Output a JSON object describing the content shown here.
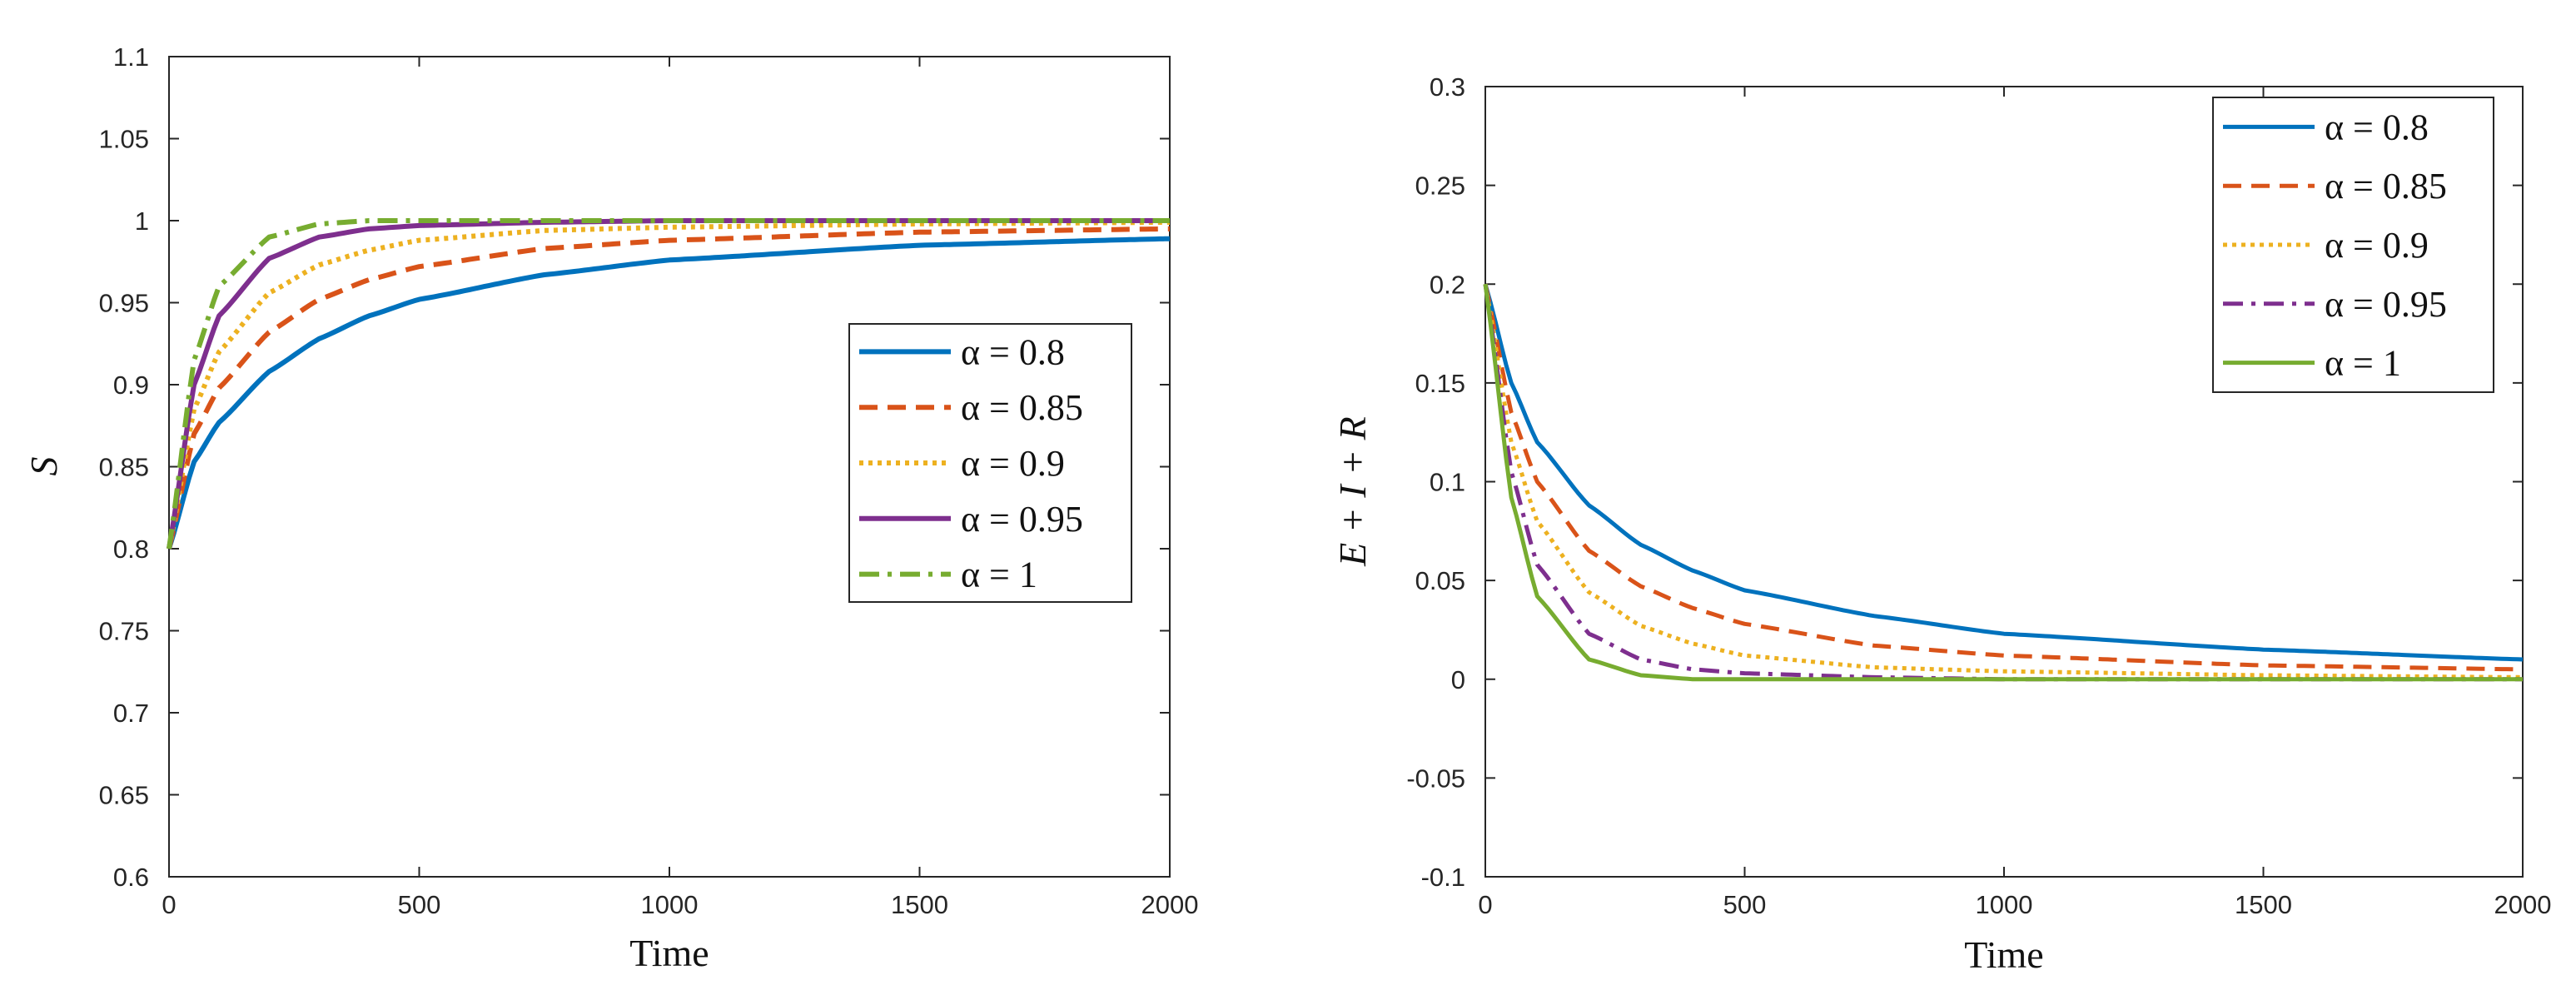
{
  "chart_data": [
    {
      "type": "line",
      "title": "",
      "xlabel": "Time",
      "ylabel": "S",
      "xlim": [
        0,
        2000
      ],
      "ylim": [
        0.6,
        1.1
      ],
      "xticks": [
        "0",
        "500",
        "1000",
        "1500",
        "2000"
      ],
      "yticks": [
        "0.6",
        "0.65",
        "0.7",
        "0.75",
        "0.8",
        "0.85",
        "0.9",
        "0.95",
        "1",
        "1.05",
        "1.1"
      ],
      "legend_position": "center-right",
      "series": [
        {
          "name": "α = 0.8",
          "color": "#0072BD",
          "dash": "solid",
          "x": [
            0,
            50,
            100,
            200,
            300,
            400,
            500,
            750,
            1000,
            1500,
            2000
          ],
          "values": [
            0.8,
            0.853,
            0.877,
            0.908,
            0.928,
            0.942,
            0.952,
            0.967,
            0.976,
            0.985,
            0.989
          ]
        },
        {
          "name": "α = 0.85",
          "color": "#D95319",
          "dash": "dashed",
          "x": [
            0,
            50,
            100,
            200,
            300,
            400,
            500,
            750,
            1000,
            1500,
            2000
          ],
          "values": [
            0.8,
            0.87,
            0.898,
            0.932,
            0.952,
            0.964,
            0.972,
            0.983,
            0.988,
            0.993,
            0.995
          ]
        },
        {
          "name": "α = 0.9",
          "color": "#EDB120",
          "dash": "dotted",
          "x": [
            0,
            50,
            100,
            200,
            300,
            400,
            500,
            750,
            1000,
            1500,
            2000
          ],
          "values": [
            0.8,
            0.885,
            0.92,
            0.956,
            0.973,
            0.982,
            0.988,
            0.994,
            0.996,
            0.998,
            0.999
          ]
        },
        {
          "name": "α = 0.95",
          "color": "#7E2F8E",
          "dash": "solid",
          "x": [
            0,
            50,
            100,
            200,
            300,
            400,
            500,
            750,
            1000,
            1500,
            2000
          ],
          "values": [
            0.8,
            0.9,
            0.942,
            0.977,
            0.99,
            0.995,
            0.997,
            0.999,
            1.0,
            1.0,
            1.0
          ]
        },
        {
          "name": "α = 1",
          "color": "#77AC30",
          "dash": "dashdot",
          "x": [
            0,
            50,
            100,
            200,
            300,
            400,
            500,
            750,
            1000,
            1500,
            2000
          ],
          "values": [
            0.8,
            0.915,
            0.96,
            0.99,
            0.998,
            1.0,
            1.0,
            1.0,
            1.0,
            1.0,
            1.0
          ]
        }
      ]
    },
    {
      "type": "line",
      "title": "",
      "xlabel": "Time",
      "ylabel": "E + I + R",
      "xlim": [
        0,
        2000
      ],
      "ylim": [
        -0.1,
        0.3
      ],
      "xticks": [
        "0",
        "500",
        "1000",
        "1500",
        "2000"
      ],
      "yticks": [
        "-0.1",
        "-0.05",
        "0",
        "0.05",
        "0.1",
        "0.15",
        "0.2",
        "0.25",
        "0.3"
      ],
      "legend_position": "top-right",
      "series": [
        {
          "name": "α = 0.8",
          "color": "#0072BD",
          "dash": "solid",
          "x": [
            0,
            50,
            100,
            200,
            300,
            400,
            500,
            750,
            1000,
            1500,
            2000
          ],
          "values": [
            0.2,
            0.15,
            0.12,
            0.088,
            0.068,
            0.055,
            0.045,
            0.032,
            0.023,
            0.015,
            0.01
          ]
        },
        {
          "name": "α = 0.85",
          "color": "#D95319",
          "dash": "dashed",
          "x": [
            0,
            50,
            100,
            200,
            300,
            400,
            500,
            750,
            1000,
            1500,
            2000
          ],
          "values": [
            0.2,
            0.135,
            0.1,
            0.065,
            0.047,
            0.036,
            0.028,
            0.017,
            0.012,
            0.007,
            0.005
          ]
        },
        {
          "name": "α = 0.9",
          "color": "#EDB120",
          "dash": "dotted",
          "x": [
            0,
            50,
            100,
            200,
            300,
            400,
            500,
            750,
            1000,
            1500,
            2000
          ],
          "values": [
            0.2,
            0.12,
            0.08,
            0.044,
            0.027,
            0.018,
            0.012,
            0.006,
            0.004,
            0.002,
            0.001
          ]
        },
        {
          "name": "α = 0.95",
          "color": "#7E2F8E",
          "dash": "dashdot",
          "x": [
            0,
            50,
            100,
            200,
            300,
            400,
            500,
            750,
            1000,
            1500,
            2000
          ],
          "values": [
            0.2,
            0.105,
            0.058,
            0.023,
            0.01,
            0.005,
            0.003,
            0.001,
            0.0,
            0.0,
            0.0
          ]
        },
        {
          "name": "α = 1",
          "color": "#77AC30",
          "dash": "solid",
          "x": [
            0,
            50,
            100,
            200,
            300,
            400,
            500,
            750,
            1000,
            1500,
            2000
          ],
          "values": [
            0.2,
            0.092,
            0.042,
            0.01,
            0.002,
            0.0,
            0.0,
            0.0,
            0.0,
            0.0,
            0.0
          ]
        }
      ]
    }
  ]
}
